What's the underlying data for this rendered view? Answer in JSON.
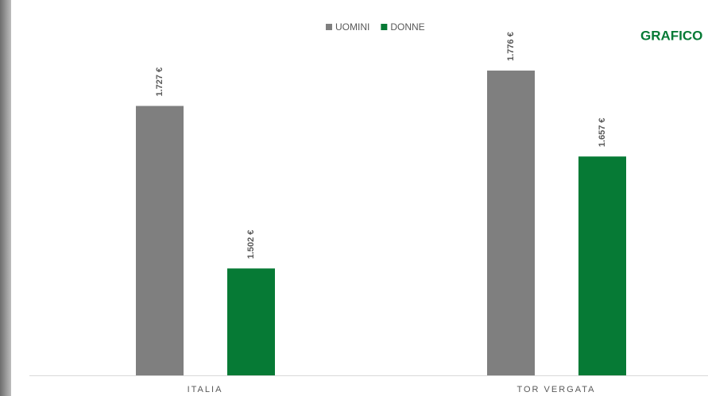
{
  "chart_data": {
    "type": "bar",
    "annotation": "GRAFICO",
    "categories": [
      "ITALIA",
      "TOR VERGATA"
    ],
    "series": [
      {
        "name": "UOMINI",
        "color": "#7f7f7f",
        "values": [
          1727,
          1776
        ],
        "value_labels": [
          "1.727 €",
          "1.776 €"
        ]
      },
      {
        "name": "DONNE",
        "color": "#067a35",
        "values": [
          1502,
          1657
        ],
        "value_labels": [
          "1.502 €",
          "1.657 €"
        ]
      }
    ],
    "ylim": [
      1354,
      1844
    ]
  }
}
